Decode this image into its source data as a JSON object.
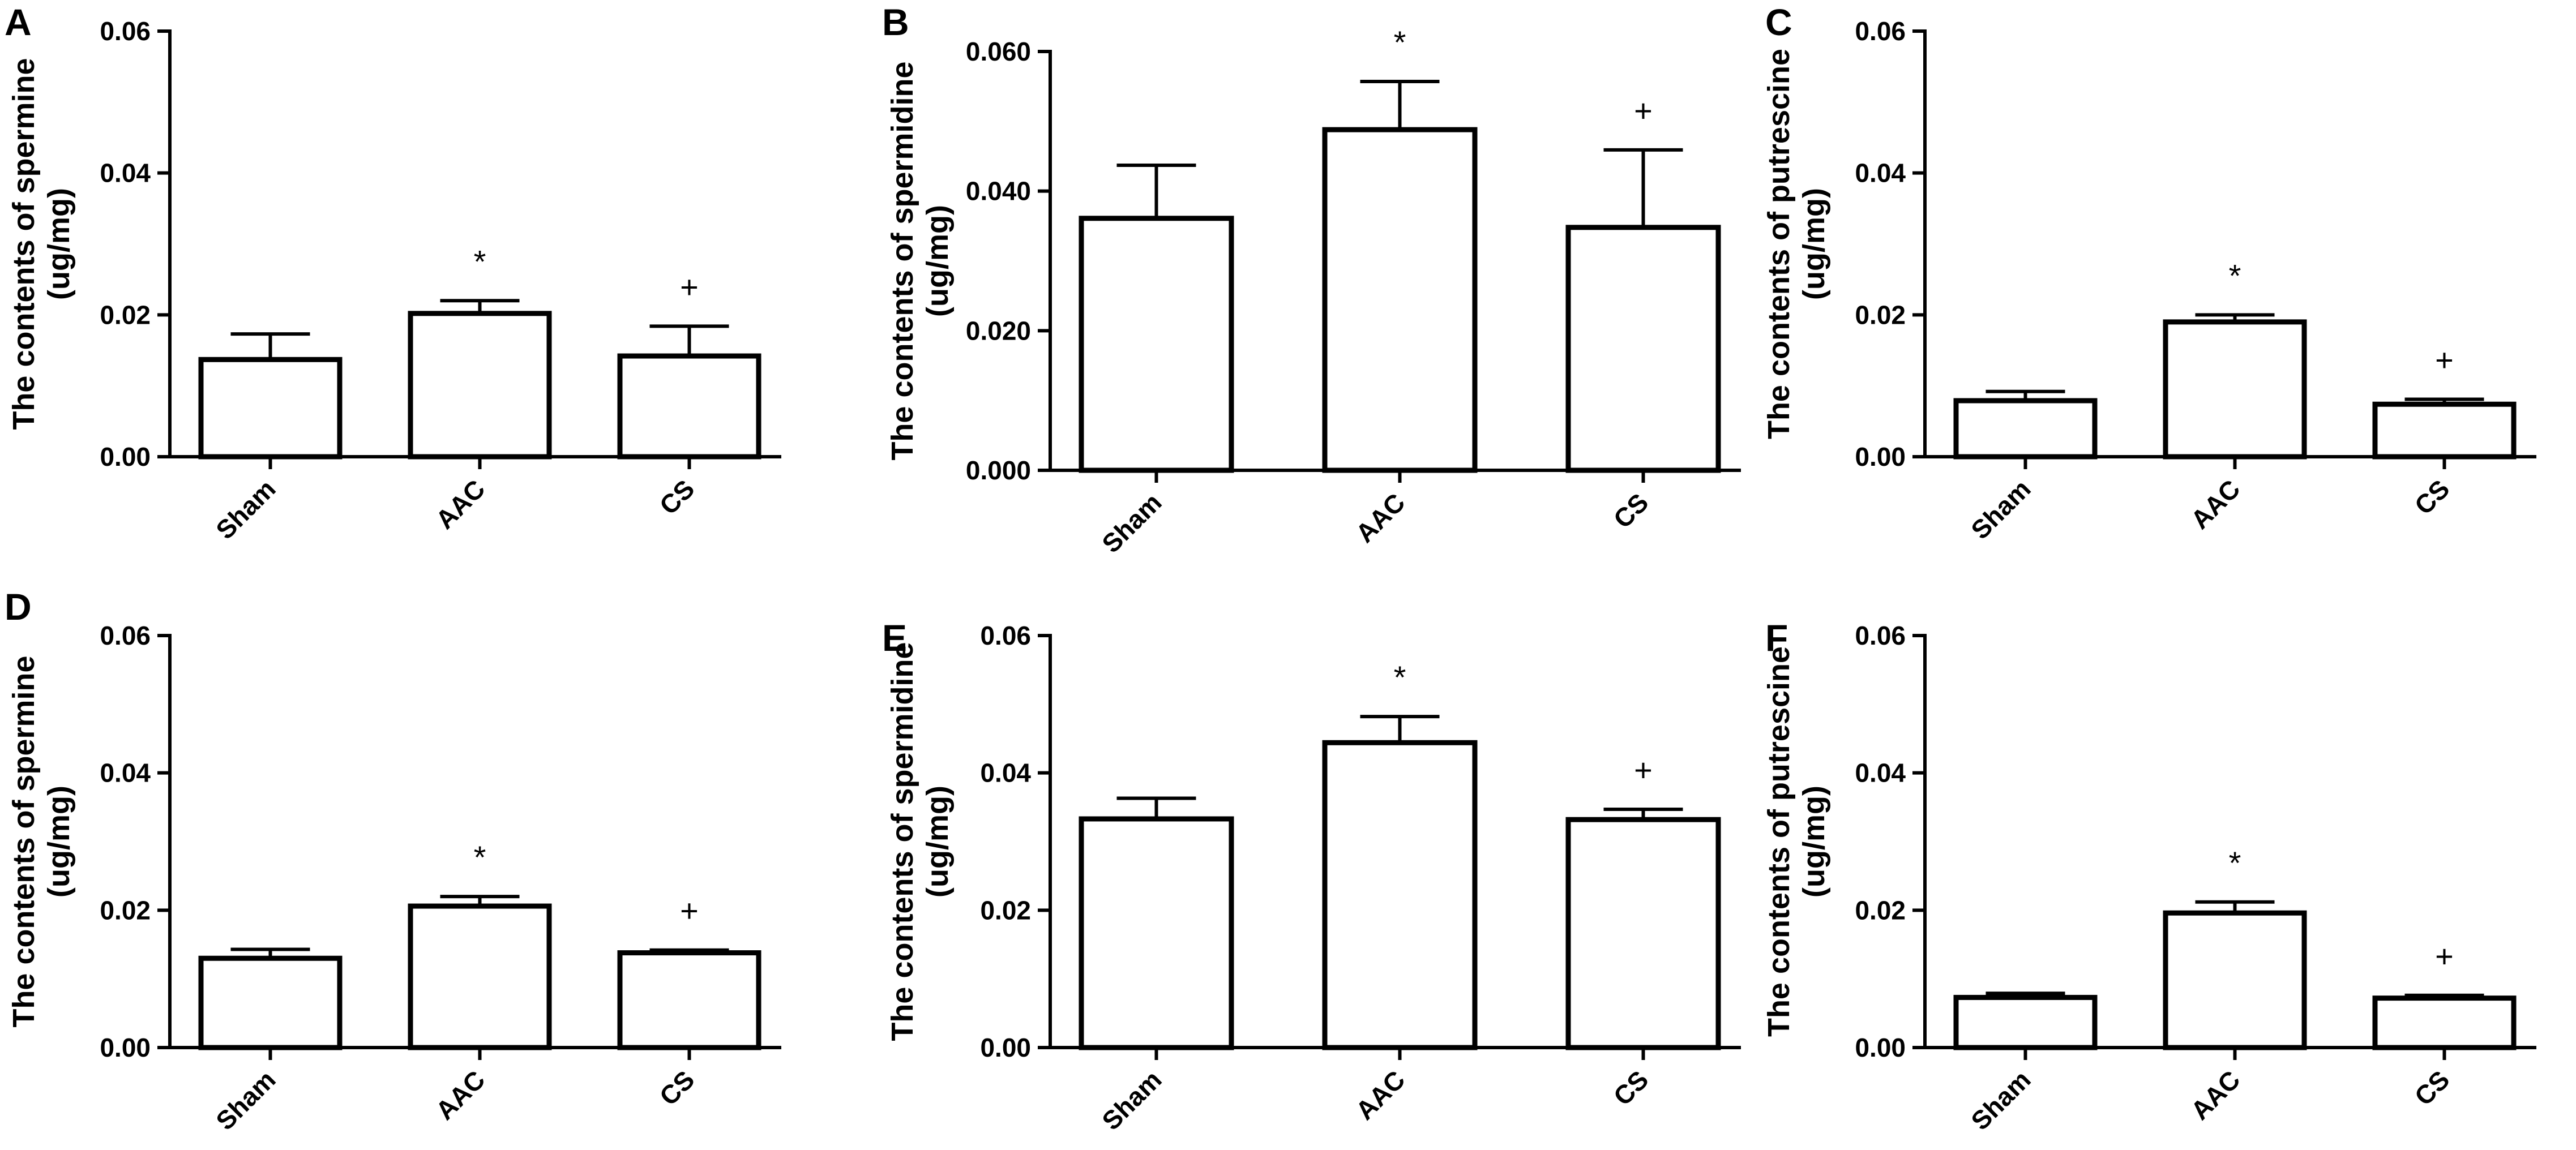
{
  "figure": {
    "background": "#ffffff",
    "bar_fill": "#ffffff",
    "stroke": "#000000"
  },
  "chart_data": [
    {
      "panel": "A",
      "type": "bar",
      "categories": [
        "Sham",
        "AAC",
        "CS"
      ],
      "values": [
        0.0137,
        0.0202,
        0.0142
      ],
      "errors": [
        0.0036,
        0.0018,
        0.0042
      ],
      "annotations": [
        "",
        "*",
        "+"
      ],
      "ylabel_line1": "The contents of spermine",
      "ylabel_line2": "(ug/mg)",
      "yticks": [
        "0.00",
        "0.02",
        "0.04",
        "0.06"
      ],
      "ylim": [
        0,
        0.06
      ]
    },
    {
      "panel": "B",
      "type": "bar",
      "categories": [
        "Sham",
        "AAC",
        "CS"
      ],
      "values": [
        0.0361,
        0.0488,
        0.0348
      ],
      "errors": [
        0.0076,
        0.0069,
        0.0111
      ],
      "annotations": [
        "",
        "*",
        "+"
      ],
      "ylabel_line1": "The contents of spermidine",
      "ylabel_line2": "(ug/mg)",
      "yticks": [
        "0.000",
        "0.020",
        "0.040",
        "0.060"
      ],
      "ylim": [
        0,
        0.06
      ]
    },
    {
      "panel": "C",
      "type": "bar",
      "categories": [
        "Sham",
        "AAC",
        "CS"
      ],
      "values": [
        0.0079,
        0.019,
        0.0074
      ],
      "errors": [
        0.0013,
        0.001,
        0.0007
      ],
      "annotations": [
        "",
        "*",
        "+"
      ],
      "ylabel_line1": "The contents of putrescine",
      "ylabel_line2": "(ug/mg)",
      "yticks": [
        "0.00",
        "0.02",
        "0.04",
        "0.06"
      ],
      "ylim": [
        0,
        0.06
      ]
    },
    {
      "panel": "D",
      "type": "bar",
      "categories": [
        "Sham",
        "AAC",
        "CS"
      ],
      "values": [
        0.013,
        0.0206,
        0.0138
      ],
      "errors": [
        0.0013,
        0.0014,
        0.0004
      ],
      "annotations": [
        "",
        "*",
        "+"
      ],
      "ylabel_line1": "The contents of spermine",
      "ylabel_line2": "(ug/mg)",
      "yticks": [
        "0.00",
        "0.02",
        "0.04",
        "0.06"
      ],
      "ylim": [
        0,
        0.06
      ]
    },
    {
      "panel": "E",
      "type": "bar",
      "categories": [
        "Sham",
        "AAC",
        "CS"
      ],
      "values": [
        0.0333,
        0.0444,
        0.0332
      ],
      "errors": [
        0.003,
        0.0038,
        0.0015
      ],
      "annotations": [
        "",
        "*",
        "+"
      ],
      "ylabel_line1": "The contents of spermidine",
      "ylabel_line2": "(ug/mg)",
      "yticks": [
        "0.00",
        "0.02",
        "0.04",
        "0.06"
      ],
      "ylim": [
        0,
        0.06
      ]
    },
    {
      "panel": "F",
      "type": "bar",
      "categories": [
        "Sham",
        "AAC",
        "CS"
      ],
      "values": [
        0.0073,
        0.0196,
        0.0072
      ],
      "errors": [
        0.0006,
        0.0016,
        0.0004
      ],
      "annotations": [
        "",
        "*",
        "+"
      ],
      "ylabel_line1": "The contents of putrescine",
      "ylabel_line2": "(ug/mg)",
      "yticks": [
        "0.00",
        "0.02",
        "0.04",
        "0.06"
      ],
      "ylim": [
        0,
        0.06
      ]
    }
  ]
}
